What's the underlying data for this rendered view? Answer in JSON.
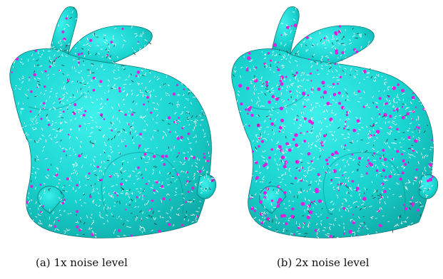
{
  "figure": {
    "subfigures": [
      {
        "label": "(a)",
        "caption": "1x noise level",
        "noise_multiplier": 1
      },
      {
        "label": "(b)",
        "caption": "2x noise level",
        "noise_multiplier": 2
      }
    ],
    "colors": {
      "mesh": "#19d3cf",
      "mesh_shade": "#0fa7a3",
      "highlight": "#e020e0",
      "normal_glyph": "#ffffff",
      "background": "#ffffff"
    }
  }
}
